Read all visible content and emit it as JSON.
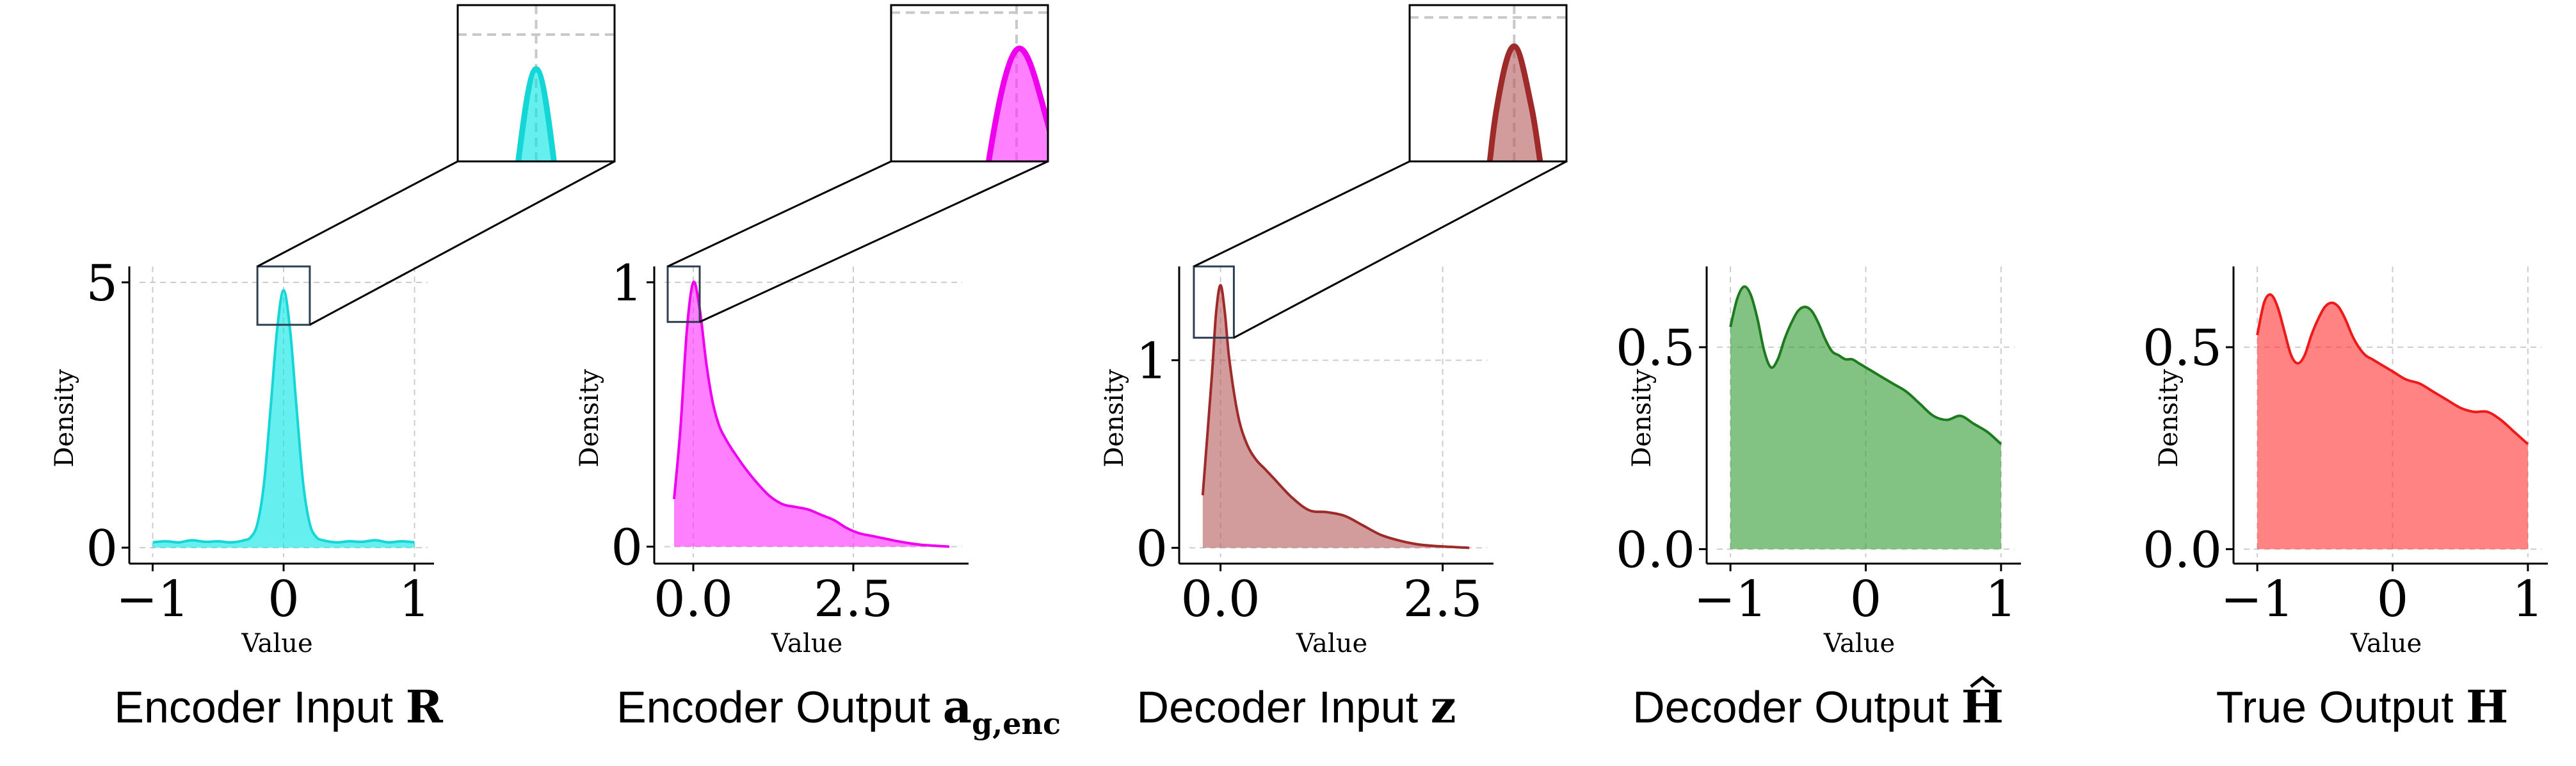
{
  "figure": {
    "panels": [
      {
        "caption": "Encoder Input",
        "symbol": "R",
        "subscript": "",
        "hat": false,
        "color": "#00e5e5",
        "stroke": "#14d6d6",
        "zoom_inset": true
      },
      {
        "caption": "Encoder Output",
        "symbol": "a",
        "subscript": "g,enc",
        "hat": false,
        "color": "#ff2bff",
        "stroke": "#ee00ee",
        "zoom_inset": true
      },
      {
        "caption": "Decoder Input",
        "symbol": "z",
        "subscript": "",
        "hat": false,
        "color": "#b45a5a",
        "stroke": "#9e2a2a",
        "zoom_inset": true
      },
      {
        "caption": "Decoder Output",
        "symbol": "H",
        "subscript": "",
        "hat": true,
        "color": "#2f9a2f",
        "stroke": "#1e7a1e",
        "zoom_inset": false
      },
      {
        "caption": "True Output",
        "symbol": "H",
        "subscript": "",
        "hat": false,
        "color": "#ff3030",
        "stroke": "#ee1a1a",
        "zoom_inset": false
      }
    ]
  },
  "chart_data": [
    {
      "type": "area",
      "title": "Encoder Input R",
      "xlabel": "Value",
      "ylabel": "Density",
      "xlim": [
        -1.1,
        1.1
      ],
      "ylim": [
        -0.18,
        5.3
      ],
      "xticks": [
        -1,
        0,
        1
      ],
      "xtick_labels": [
        "−1",
        "0",
        "1"
      ],
      "yticks": [
        0,
        5
      ],
      "ytick_labels": [
        "0",
        "5"
      ],
      "grid": true,
      "x": [
        -1.0,
        -0.9,
        -0.8,
        -0.7,
        -0.6,
        -0.5,
        -0.4,
        -0.3,
        -0.25,
        -0.2,
        -0.15,
        -0.1,
        -0.05,
        0.0,
        0.05,
        0.1,
        0.15,
        0.2,
        0.25,
        0.3,
        0.4,
        0.5,
        0.6,
        0.7,
        0.8,
        0.9,
        1.0
      ],
      "y": [
        0.1,
        0.12,
        0.1,
        0.14,
        0.11,
        0.12,
        0.1,
        0.14,
        0.2,
        0.45,
        1.2,
        2.6,
        4.1,
        4.85,
        4.1,
        2.6,
        1.2,
        0.45,
        0.2,
        0.14,
        0.1,
        0.12,
        0.11,
        0.14,
        0.1,
        0.12,
        0.1
      ]
    },
    {
      "type": "area",
      "title": "Encoder Output a g,enc",
      "xlabel": "Value",
      "ylabel": "Density",
      "xlim": [
        -0.45,
        4.2
      ],
      "ylim": [
        -0.04,
        1.06
      ],
      "xticks": [
        0,
        2.5
      ],
      "xtick_labels": [
        "0.0",
        "2.5"
      ],
      "yticks": [
        0,
        1
      ],
      "ytick_labels": [
        "0",
        "1"
      ],
      "grid": true,
      "x": [
        -0.3,
        -0.2,
        -0.1,
        0.0,
        0.1,
        0.2,
        0.3,
        0.4,
        0.5,
        0.6,
        0.8,
        1.0,
        1.2,
        1.4,
        1.6,
        1.8,
        2.0,
        2.2,
        2.4,
        2.6,
        2.8,
        3.0,
        3.2,
        3.4,
        3.6,
        3.8,
        4.0
      ],
      "y": [
        0.18,
        0.45,
        0.82,
        1.0,
        0.9,
        0.7,
        0.55,
        0.46,
        0.41,
        0.37,
        0.3,
        0.24,
        0.19,
        0.16,
        0.15,
        0.14,
        0.12,
        0.1,
        0.07,
        0.05,
        0.04,
        0.03,
        0.02,
        0.012,
        0.006,
        0.003,
        0.0
      ]
    },
    {
      "type": "area",
      "title": "Decoder Input z",
      "xlabel": "Value",
      "ylabel": "Density",
      "xlim": [
        -0.35,
        3.0
      ],
      "ylim": [
        -0.05,
        1.5
      ],
      "xticks": [
        0,
        2.5
      ],
      "xtick_labels": [
        "0.0",
        "2.5"
      ],
      "yticks": [
        0,
        1
      ],
      "ytick_labels": [
        "0",
        "1"
      ],
      "grid": true,
      "x": [
        -0.2,
        -0.1,
        -0.05,
        0.0,
        0.05,
        0.1,
        0.2,
        0.3,
        0.4,
        0.5,
        0.6,
        0.8,
        1.0,
        1.2,
        1.4,
        1.6,
        1.8,
        2.0,
        2.2,
        2.4,
        2.6,
        2.8
      ],
      "y": [
        0.28,
        0.9,
        1.25,
        1.4,
        1.25,
        1.0,
        0.7,
        0.55,
        0.47,
        0.42,
        0.37,
        0.27,
        0.2,
        0.19,
        0.17,
        0.12,
        0.07,
        0.04,
        0.02,
        0.01,
        0.005,
        0.0
      ]
    },
    {
      "type": "area",
      "title": "Decoder Output Ĥ",
      "xlabel": "Value",
      "ylabel": "Density",
      "xlim": [
        -1.1,
        1.1
      ],
      "ylim": [
        -0.02,
        0.7
      ],
      "xticks": [
        -1,
        0,
        1
      ],
      "xtick_labels": [
        "−1",
        "0",
        "1"
      ],
      "yticks": [
        0,
        0.5
      ],
      "ytick_labels": [
        "0.0",
        "0.5"
      ],
      "grid": true,
      "x": [
        -1.0,
        -0.95,
        -0.9,
        -0.85,
        -0.8,
        -0.75,
        -0.7,
        -0.65,
        -0.6,
        -0.55,
        -0.5,
        -0.45,
        -0.4,
        -0.35,
        -0.3,
        -0.25,
        -0.2,
        -0.15,
        -0.1,
        -0.05,
        0.0,
        0.1,
        0.2,
        0.3,
        0.4,
        0.5,
        0.6,
        0.7,
        0.8,
        0.9,
        1.0
      ],
      "y": [
        0.55,
        0.62,
        0.65,
        0.63,
        0.57,
        0.49,
        0.45,
        0.47,
        0.52,
        0.56,
        0.59,
        0.6,
        0.59,
        0.56,
        0.52,
        0.49,
        0.48,
        0.47,
        0.47,
        0.46,
        0.45,
        0.43,
        0.41,
        0.39,
        0.36,
        0.33,
        0.32,
        0.33,
        0.31,
        0.29,
        0.26
      ]
    },
    {
      "type": "area",
      "title": "True Output H",
      "xlabel": "Value",
      "ylabel": "Density",
      "xlim": [
        -1.1,
        1.1
      ],
      "ylim": [
        -0.02,
        0.7
      ],
      "xticks": [
        -1,
        0,
        1
      ],
      "xtick_labels": [
        "−1",
        "0",
        "1"
      ],
      "yticks": [
        0,
        0.5
      ],
      "ytick_labels": [
        "0.0",
        "0.5"
      ],
      "grid": true,
      "x": [
        -1.0,
        -0.95,
        -0.9,
        -0.85,
        -0.8,
        -0.75,
        -0.7,
        -0.65,
        -0.6,
        -0.55,
        -0.5,
        -0.45,
        -0.4,
        -0.35,
        -0.3,
        -0.25,
        -0.2,
        -0.15,
        -0.1,
        -0.05,
        0.0,
        0.1,
        0.2,
        0.3,
        0.4,
        0.5,
        0.6,
        0.7,
        0.8,
        0.9,
        1.0
      ],
      "y": [
        0.53,
        0.61,
        0.63,
        0.6,
        0.54,
        0.48,
        0.46,
        0.48,
        0.53,
        0.57,
        0.6,
        0.61,
        0.6,
        0.57,
        0.53,
        0.5,
        0.48,
        0.47,
        0.46,
        0.45,
        0.44,
        0.42,
        0.41,
        0.39,
        0.37,
        0.35,
        0.34,
        0.34,
        0.32,
        0.29,
        0.26
      ]
    }
  ]
}
